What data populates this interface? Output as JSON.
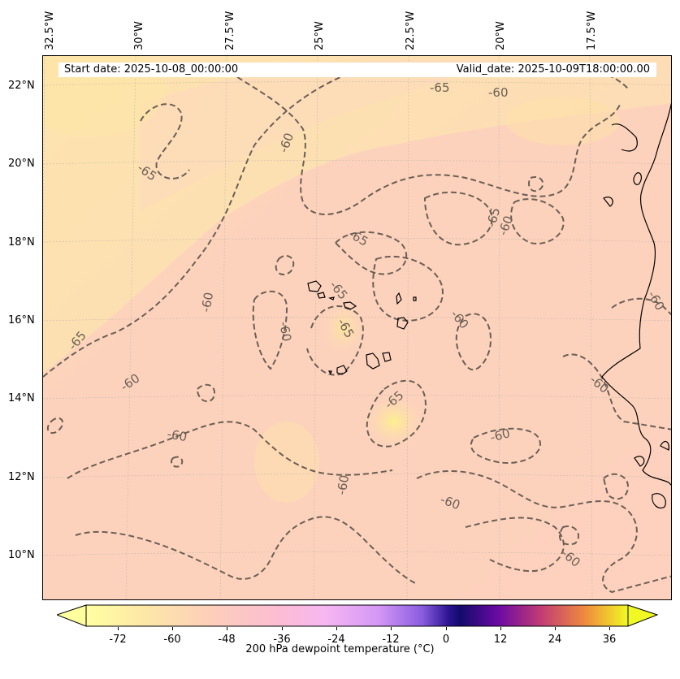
{
  "map": {
    "start_date": "Start date: 2025-10-08_00:00:00",
    "valid_date": "Valid_date: 2025-10-09T18:00:00.00",
    "lon_labels": [
      "32.5°W",
      "30°W",
      "27.5°W",
      "25°W",
      "22.5°W",
      "20°W",
      "17.5°W"
    ],
    "lat_labels": [
      "22°N",
      "20°N",
      "18°N",
      "16°N",
      "14°N",
      "12°N",
      "10°N"
    ],
    "contour_labels": [
      "-65",
      "-60",
      "-65",
      "-60",
      "-65",
      "-65",
      "-60",
      "-65",
      "-60",
      "-65",
      "-60",
      "-60",
      "-60",
      "-65",
      "-60",
      "-60",
      "-60",
      "-60",
      "-60",
      "-60",
      "-65",
      "-60"
    ],
    "colors": {
      "background": "#fde4b8",
      "field_main": "#fdd4bd",
      "field_warm": "#fde89a",
      "contour": "#6b5f55",
      "coast": "#000000"
    }
  },
  "colorbar": {
    "label": "200 hPa dewpoint temperature (°C)",
    "ticks": [
      "-72",
      "-60",
      "-48",
      "-36",
      "-24",
      "-12",
      "0",
      "12",
      "24",
      "36"
    ],
    "colors": [
      "#ffffa0",
      "#fde2a8",
      "#fdcab9",
      "#fcb9d6",
      "#f5b4f5",
      "#c98ef5",
      "#9e6ce8",
      "#1a0d78",
      "#5a0aa0",
      "#b3317c",
      "#e86d4d",
      "#f9b730",
      "#f0f921"
    ]
  }
}
